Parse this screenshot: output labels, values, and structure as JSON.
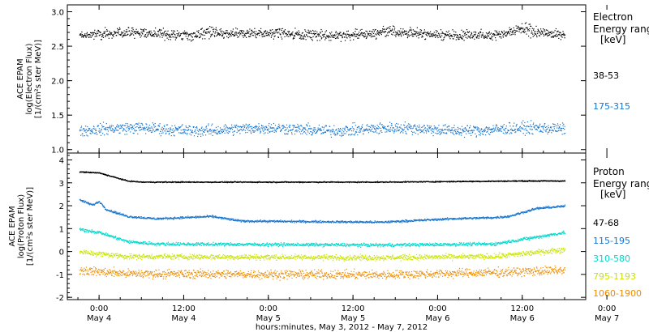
{
  "footer": {
    "xlabel": "hours:minutes, May  3, 2012 - May  7, 2012"
  },
  "chart_data": [
    {
      "type": "scatter",
      "ylabel_lines": [
        "ACE EPAM",
        "log(Electron Flux)",
        "[1/(cm²s ster MeV)]"
      ],
      "ylim": [
        0.95,
        3.1
      ],
      "yticks": [
        1.0,
        1.5,
        2.0,
        2.5,
        3.0
      ],
      "ytick_labels": [
        "1.0",
        "1.5",
        "2.0",
        "2.5",
        "3.0"
      ],
      "legend": {
        "title_lines": [
          "Electron",
          "Energy ranges",
          "[keV]"
        ]
      },
      "series": [
        {
          "name": "38-53",
          "color": "#000000",
          "mean": 2.68,
          "noise": 0.06,
          "peaks": [
            [
              15.5,
              0.1
            ],
            [
              41,
              0.06
            ],
            [
              60,
              0.1
            ]
          ]
        },
        {
          "name": "175-315",
          "color": "#1874cd",
          "mean": 1.3,
          "noise": 0.07,
          "peaks": []
        }
      ]
    },
    {
      "type": "scatter",
      "ylabel_lines": [
        "ACE EPAM",
        "log(Proton Flux)",
        "[1/(cm²s ster MeV)]"
      ],
      "ylim": [
        -2.1,
        4.3
      ],
      "yticks": [
        -2,
        -1,
        0,
        1,
        2,
        3,
        4
      ],
      "ytick_labels": [
        "-2",
        "-1",
        "0",
        "1",
        "2",
        "3",
        "4"
      ],
      "legend": {
        "title_lines": [
          "Proton",
          "Energy ranges",
          "[keV]"
        ]
      },
      "series": [
        {
          "name": "47-68",
          "color": "#000000",
          "profile": [
            [
              -3,
              3.5
            ],
            [
              0,
              3.45
            ],
            [
              4,
              3.1
            ],
            [
              6,
              3.05
            ],
            [
              20,
              3.05
            ],
            [
              40,
              3.05
            ],
            [
              60,
              3.1
            ],
            [
              66,
              3.1
            ]
          ],
          "noise": 0.02
        },
        {
          "name": "115-195",
          "color": "#1874cd",
          "profile": [
            [
              -3,
              2.3
            ],
            [
              -1,
              2.05
            ],
            [
              0,
              2.2
            ],
            [
              1,
              1.85
            ],
            [
              4,
              1.55
            ],
            [
              8,
              1.45
            ],
            [
              16,
              1.55
            ],
            [
              20,
              1.35
            ],
            [
              40,
              1.3
            ],
            [
              50,
              1.45
            ],
            [
              56,
              1.5
            ],
            [
              58,
              1.55
            ],
            [
              62,
              1.9
            ],
            [
              66,
              2.0
            ]
          ],
          "noise": 0.04
        },
        {
          "name": "310-580",
          "color": "#00d8cc",
          "profile": [
            [
              -3,
              1.0
            ],
            [
              0,
              0.85
            ],
            [
              4,
              0.45
            ],
            [
              8,
              0.35
            ],
            [
              40,
              0.3
            ],
            [
              56,
              0.35
            ],
            [
              62,
              0.65
            ],
            [
              66,
              0.85
            ]
          ],
          "noise": 0.06
        },
        {
          "name": "795-1193",
          "color": "#c8e400",
          "profile": [
            [
              -3,
              0.0
            ],
            [
              4,
              -0.2
            ],
            [
              40,
              -0.25
            ],
            [
              56,
              -0.2
            ],
            [
              66,
              0.1
            ]
          ],
          "noise": 0.1
        },
        {
          "name": "1060-1900",
          "color": "#ee8c00",
          "profile": [
            [
              -3,
              -0.8
            ],
            [
              4,
              -0.95
            ],
            [
              40,
              -1.0
            ],
            [
              56,
              -0.9
            ],
            [
              66,
              -0.8
            ]
          ],
          "noise": 0.16
        }
      ]
    }
  ],
  "x_axis": {
    "range_hours": [
      -4.5,
      69
    ],
    "ticks": [
      {
        "t": 0,
        "lines": [
          "0:00",
          "May 4"
        ]
      },
      {
        "t": 12,
        "lines": [
          "12:00",
          "May 4"
        ]
      },
      {
        "t": 24,
        "lines": [
          "0:00",
          "May 5"
        ]
      },
      {
        "t": 36,
        "lines": [
          "12:00",
          "May 5"
        ]
      },
      {
        "t": 48,
        "lines": [
          "0:00",
          "May 6"
        ]
      },
      {
        "t": 60,
        "lines": [
          "12:00",
          "May 6"
        ]
      },
      {
        "t": 72,
        "lines": [
          "0:00",
          "May 7"
        ]
      }
    ]
  }
}
